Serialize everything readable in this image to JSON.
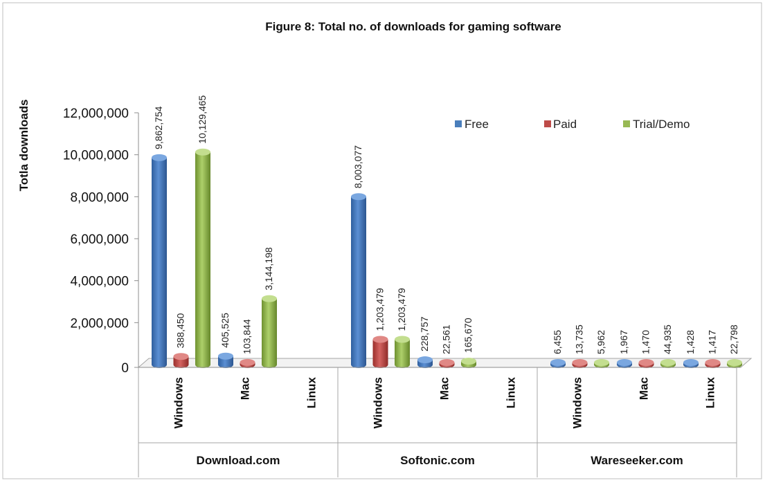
{
  "chart_data": {
    "type": "bar",
    "title": "Figure 8: Total no. of downloads for gaming software",
    "ylabel": "Totla downloads",
    "xlabel": "",
    "ylim": [
      0,
      12000000
    ],
    "yticks": [
      0,
      2000000,
      4000000,
      6000000,
      8000000,
      10000000,
      12000000
    ],
    "ytick_labels": [
      "0",
      "2,000,000",
      "4,000,000",
      "6,000,000",
      "8,000,000",
      "10,000,000",
      "12,000,000"
    ],
    "grid": false,
    "legend_position": "top-right",
    "groups": [
      {
        "name": "Download.com",
        "categories": [
          "Windows",
          "Mac",
          "Linux"
        ]
      },
      {
        "name": "Softonic.com",
        "categories": [
          "Windows",
          "Mac",
          "Linux"
        ]
      },
      {
        "name": "Wareseeker.com",
        "categories": [
          "Windows",
          "Mac",
          "Linux"
        ]
      }
    ],
    "series": [
      {
        "name": "Free",
        "color": "#4a7ebb",
        "values": [
          9862754,
          405525,
          null,
          8003077,
          228757,
          null,
          6455,
          1967,
          1428
        ],
        "labels": [
          "9,862,754",
          "405,525",
          "",
          "8,003,077",
          "228,757",
          "",
          "6,455",
          "1,967",
          "1,428"
        ]
      },
      {
        "name": "Paid",
        "color": "#be4b48",
        "values": [
          388450,
          103844,
          null,
          1203479,
          22561,
          null,
          13735,
          1470,
          1417
        ],
        "labels": [
          "388,450",
          "103,844",
          "",
          "1,203,479",
          "22,561",
          "",
          "13,735",
          "1,470",
          "1,417"
        ]
      },
      {
        "name": "Trial/Demo",
        "color": "#98b954",
        "values": [
          10129465,
          3144198,
          null,
          1203479,
          165670,
          null,
          5962,
          44935,
          22798
        ],
        "labels": [
          "10,129,465",
          "3,144,198",
          "",
          "1,203,479",
          "165,670",
          "",
          "5,962",
          "44,935",
          "22,798"
        ]
      }
    ]
  }
}
